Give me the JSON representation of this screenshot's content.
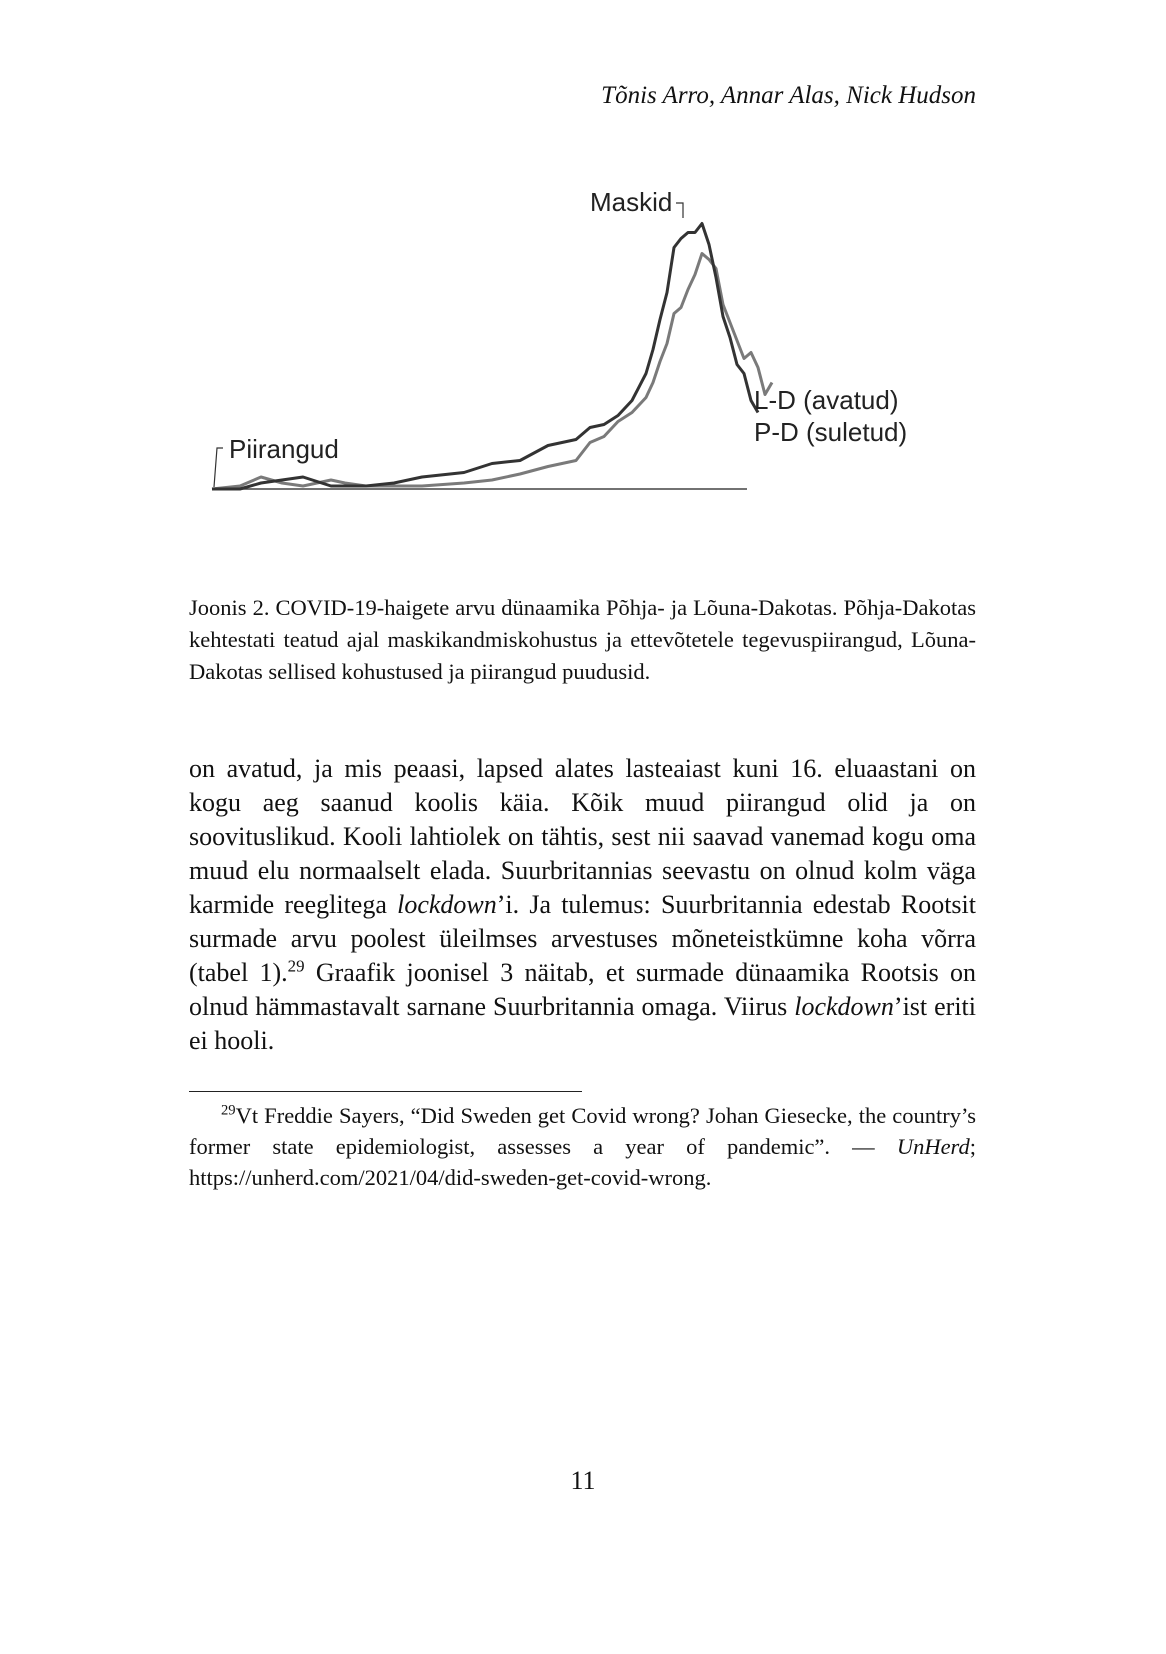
{
  "running_head": "Tõnis Arro, Annar Alas, Nick Hudson",
  "chart_data": {
    "type": "line",
    "annotations": [
      "Maskid",
      "Piirangud"
    ],
    "series": [
      {
        "name": "L-D (avatud)",
        "color": "#7a7a7a",
        "points": [
          [
            0,
            0.0
          ],
          [
            4,
            0.01
          ],
          [
            7,
            0.04
          ],
          [
            10,
            0.02
          ],
          [
            13,
            0.01
          ],
          [
            17,
            0.03
          ],
          [
            19,
            0.02
          ],
          [
            22,
            0.01
          ],
          [
            26,
            0.01
          ],
          [
            30,
            0.01
          ],
          [
            36,
            0.02
          ],
          [
            40,
            0.03
          ],
          [
            44,
            0.05
          ],
          [
            48,
            0.07
          ],
          [
            52,
            0.1
          ],
          [
            54,
            0.15
          ],
          [
            56,
            0.18
          ],
          [
            58,
            0.22
          ],
          [
            60,
            0.26
          ],
          [
            62,
            0.3
          ],
          [
            63,
            0.36
          ],
          [
            64,
            0.42
          ],
          [
            65,
            0.49
          ],
          [
            66,
            0.58
          ],
          [
            67,
            0.61
          ],
          [
            68,
            0.66
          ],
          [
            69,
            0.72
          ],
          [
            70,
            0.78
          ],
          [
            71,
            0.77
          ],
          [
            72,
            0.73
          ],
          [
            73,
            0.62
          ],
          [
            74,
            0.55
          ],
          [
            75,
            0.5
          ],
          [
            76,
            0.43
          ],
          [
            77,
            0.46
          ],
          [
            78,
            0.4
          ],
          [
            79,
            0.32
          ],
          [
            80,
            0.35
          ]
        ]
      },
      {
        "name": "P-D (suletud)",
        "color": "#333333",
        "points": [
          [
            0,
            0.0
          ],
          [
            4,
            0.0
          ],
          [
            7,
            0.02
          ],
          [
            10,
            0.03
          ],
          [
            13,
            0.04
          ],
          [
            17,
            0.01
          ],
          [
            19,
            0.01
          ],
          [
            22,
            0.01
          ],
          [
            26,
            0.02
          ],
          [
            30,
            0.04
          ],
          [
            36,
            0.06
          ],
          [
            40,
            0.08
          ],
          [
            44,
            0.1
          ],
          [
            48,
            0.14
          ],
          [
            52,
            0.17
          ],
          [
            54,
            0.2
          ],
          [
            56,
            0.22
          ],
          [
            58,
            0.24
          ],
          [
            60,
            0.3
          ],
          [
            62,
            0.38
          ],
          [
            63,
            0.47
          ],
          [
            64,
            0.56
          ],
          [
            65,
            0.66
          ],
          [
            66,
            0.8
          ],
          [
            67,
            0.84
          ],
          [
            68,
            0.85
          ],
          [
            69,
            0.86
          ],
          [
            70,
            0.88
          ],
          [
            71,
            0.82
          ],
          [
            72,
            0.7
          ],
          [
            73,
            0.58
          ],
          [
            74,
            0.5
          ],
          [
            75,
            0.42
          ],
          [
            76,
            0.38
          ],
          [
            77,
            0.3
          ],
          [
            78,
            0.25
          ]
        ]
      }
    ]
  },
  "caption": "Joonis 2. COVID-19-haigete arvu dünaamika Põhja- ja Lõuna-Dakotas. Põhja-Dakotas kehtestati teatud ajal maskikandmiskohustus ja ettevõtetele tegevuspiirangud, Lõuna-Dakotas sellised kohustused ja piirangud puudusid.",
  "body": {
    "part1": "on avatud, ja mis peaasi, lapsed alates lasteaiast kuni 16. eluaastani on kogu aeg saanud koolis käia. Kõik muud piirangud olid ja on soovituslikud. Kooli lahtiolek on tähtis, sest nii saavad vanemad kogu oma muud elu normaalselt elada. Suurbritannias seevastu on olnud kolm väga karmide reeglitega ",
    "em1": "lockdown",
    "part2": "’i. Ja tulemus: Suurbritannia edestab Rootsit surmade arvu poolest üleilmses arvestuses mõneteistkümne koha võrra (tabel 1).",
    "footnote_ref": "29",
    "part3": " Graafik joonisel 3 näitab, et surmade dünaamika Rootsis on olnud hämmastavalt sarnane Suurbritannia omaga. Viirus ",
    "em2": "lockdown",
    "part4": "’ist eriti ei hooli."
  },
  "footnote": {
    "number": "29",
    "text1": "Vt Freddie Sayers, “Did Sweden get Covid wrong? Johan Giesecke, the country’s former state epidemiologist, assesses a year of pandemic”. — ",
    "source": "UnHerd",
    "text2": "; https://unherd.com/2021/04/did-sweden-get-covid-wrong."
  },
  "page_number": "11"
}
